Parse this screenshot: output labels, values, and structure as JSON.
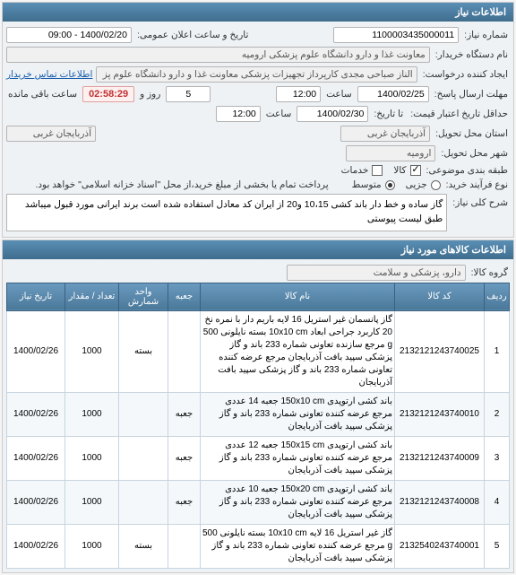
{
  "panels": {
    "need_info_title": "اطلاعات نیاز",
    "goods_info_title": "اطلاعات کالاهای مورد نیاز"
  },
  "labels": {
    "need_number": "شماره نیاز:",
    "announce_datetime": "تاریخ و ساعت اعلان عمومی:",
    "buyer_org": "نام دستگاه خریدار:",
    "creator": "ایجاد کننده درخواست:",
    "buyer_contact": "اطلاعات تماس خریدار",
    "response_deadline": "مهلت ارسال پاسخ:",
    "hour": "ساعت",
    "date_label": "",
    "days_remain_prefix": "",
    "days_remain_suffix": "روز و",
    "time_remain_suffix": "ساعت باقی مانده",
    "price_validity": "حداقل تاریخ اعتبار قیمت:",
    "until_date": "تا تاریخ:",
    "delivery_state": "استان محل تحویل:",
    "delivery_city": "شهر محل تحویل:",
    "packaging": "طبقه بندی موضوعی:",
    "kala": "کالا",
    "khadamat": "خدمات",
    "buy_process": "نوع فرآیند خرید:",
    "small": "جزیی",
    "medium": "متوسط",
    "payment_note": "پرداخت تمام یا بخشی از مبلغ خرید،از محل \"اسناد خزانه اسلامی\" خواهد بود.",
    "need_desc_label": "شرح کلی نیاز:",
    "goods_group": "گروه کالا:"
  },
  "values": {
    "need_number": "1100003435000011",
    "announce_datetime": "1400/02/20 - 09:00",
    "buyer_org": "معاونت غذا و دارو دانشگاه علوم پزشکی ارومیه",
    "creator": "الناز صباحی مجدی کارپرداز تجهیزات پزشکی معاونت غذا و دارو دانشگاه علوم پز",
    "response_date": "1400/02/25",
    "response_hour": "12:00",
    "days_remain": "5",
    "time_remain": "02:58:29",
    "price_validity_date": "1400/02/30",
    "price_validity_hour": "12:00",
    "delivery_state": "آذربایجان غربی",
    "delivery_city": "ارومیه",
    "delivery_city2": "آذربایجان غربی",
    "kala_checked": true,
    "khadamat_checked": false,
    "small_checked": false,
    "medium_checked": true,
    "need_desc": "گاز ساده و خط دار باند کشی 10،15 و20 از ایران کد معادل استفاده شده است برند ایرانی مورد قبول میباشد طبق لیست پیوستی",
    "goods_group": "دارو، پزشکی و سلامت"
  },
  "table": {
    "columns": [
      "ردیف",
      "کد کالا",
      "نام کالا",
      "جعبه",
      "واحد شمارش",
      "تعداد / مقدار",
      "تاریخ نیاز"
    ],
    "rows": [
      {
        "idx": "1",
        "code": "2132121243740025",
        "name": "گاز پانسمان غیر استریل 16 لایه باریم دار با نمره نخ 20 کاربرد جراحی ابعاد 10x10 cm بسته نایلونی 500 g مرجع سازنده تعاونی شماره 233 باند و گاز پزشکی سپید بافت آذربایجان مرجع عرضه کننده تعاونی شماره 233 باند و گاز پزشکی سپید بافت آذربایجان",
        "box": "",
        "unit": "بسته",
        "qty": "1000",
        "date": "1400/02/26"
      },
      {
        "idx": "2",
        "code": "2132121243740010",
        "name": "باند کشی ارتوپدی 150x10 cm جعبه 14 عددی مرجع عرضه کننده تعاونی شماره 233 باند و گاز پزشکی سپید بافت آذربایجان",
        "box": "جعبه",
        "unit": "",
        "qty": "1000",
        "date": "1400/02/26"
      },
      {
        "idx": "3",
        "code": "2132121243740009",
        "name": "باند کشی ارتوپدی 150x15 cm جعبه 12 عددی مرجع عرضه کننده تعاونی شماره 233 باند و گاز پزشکی سپید بافت آذربایجان",
        "box": "جعبه",
        "unit": "",
        "qty": "1000",
        "date": "1400/02/26"
      },
      {
        "idx": "4",
        "code": "2132121243740008",
        "name": "باند کشی ارتوپدی 150x20 cm جعبه 10 عددی مرجع عرضه کننده تعاونی شماره 233 باند و گاز پزشکی سپید بافت آذربایجان",
        "box": "جعبه",
        "unit": "",
        "qty": "1000",
        "date": "1400/02/26"
      },
      {
        "idx": "5",
        "code": "2132540243740001",
        "name": "گاز غیر استریل 16 لایه 10x10 cm بسته نایلونی 500 g مرجع عرضه کننده تعاونی شماره 233 باند و گاز پزشکی سپید بافت آذربایجان",
        "box": "",
        "unit": "بسته",
        "qty": "1000",
        "date": "1400/02/26"
      }
    ]
  },
  "colors": {
    "header_grad_top": "#5a8fb5",
    "header_grad_bottom": "#3f6d8e",
    "panel_bg": "#eef2f5",
    "border": "#b4b4b4",
    "link": "#1a5dab",
    "countdown": "#c03030",
    "th_top": "#6a9abf",
    "th_bottom": "#4a7899",
    "row_alt": "#f4f8fb"
  }
}
